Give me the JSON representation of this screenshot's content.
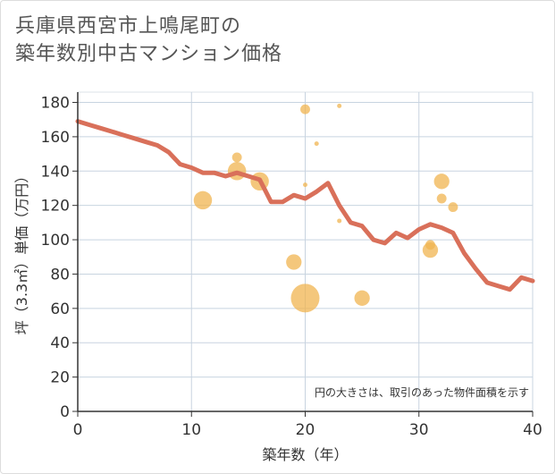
{
  "chart_data": {
    "type": "scatter",
    "title_line1": "兵庫県西宮市上鳴尾町の",
    "title_line2": "築年数別中古マンション価格",
    "xlabel": "築年数（年）",
    "ylabel": "坪（3.3㎡）単価（万円）",
    "note": "円の大きさは、取引のあった物件面積を示す",
    "xlim": [
      0,
      40
    ],
    "ylim": [
      0,
      186
    ],
    "x_ticks": [
      0,
      10,
      20,
      30,
      40
    ],
    "y_ticks": [
      0,
      20,
      40,
      60,
      80,
      100,
      120,
      140,
      160,
      180
    ],
    "colors": {
      "bubble": "#f0b450",
      "trend": "#d9705a",
      "grid": "#c8d4e0",
      "axis": "#333333"
    },
    "bubbles": [
      {
        "x": 11,
        "y": 123,
        "size": 3.2
      },
      {
        "x": 14,
        "y": 148,
        "size": 1.7
      },
      {
        "x": 14,
        "y": 140,
        "size": 3.2
      },
      {
        "x": 16,
        "y": 134,
        "size": 3.2
      },
      {
        "x": 19,
        "y": 87,
        "size": 2.7
      },
      {
        "x": 20,
        "y": 176,
        "size": 1.7
      },
      {
        "x": 20,
        "y": 132,
        "size": 0.4
      },
      {
        "x": 20,
        "y": 66,
        "size": 5.0
      },
      {
        "x": 21,
        "y": 156,
        "size": 0.4
      },
      {
        "x": 23,
        "y": 178,
        "size": 0.4
      },
      {
        "x": 23,
        "y": 111,
        "size": 0.4
      },
      {
        "x": 25,
        "y": 66,
        "size": 2.7
      },
      {
        "x": 31,
        "y": 97,
        "size": 1.7
      },
      {
        "x": 31,
        "y": 94,
        "size": 2.7
      },
      {
        "x": 32,
        "y": 134,
        "size": 2.7
      },
      {
        "x": 32,
        "y": 124,
        "size": 1.7
      },
      {
        "x": 33,
        "y": 119,
        "size": 1.7
      }
    ],
    "trend_line": {
      "x": [
        0,
        1,
        2,
        3,
        4,
        5,
        6,
        7,
        8,
        9,
        10,
        11,
        12,
        13,
        14,
        15,
        16,
        17,
        18,
        19,
        20,
        21,
        22,
        23,
        24,
        25,
        26,
        27,
        28,
        29,
        30,
        31,
        32,
        33,
        34,
        35,
        36,
        37,
        38,
        39,
        40
      ],
      "y": [
        169,
        167,
        165,
        163,
        161,
        159,
        157,
        155,
        151,
        144,
        142,
        139,
        139,
        137,
        139,
        137,
        135,
        122,
        122,
        126,
        124,
        128,
        133,
        120,
        110,
        108,
        100,
        98,
        104,
        101,
        106,
        109,
        107,
        104,
        92,
        83,
        75,
        73,
        71,
        78,
        76
      ]
    }
  }
}
